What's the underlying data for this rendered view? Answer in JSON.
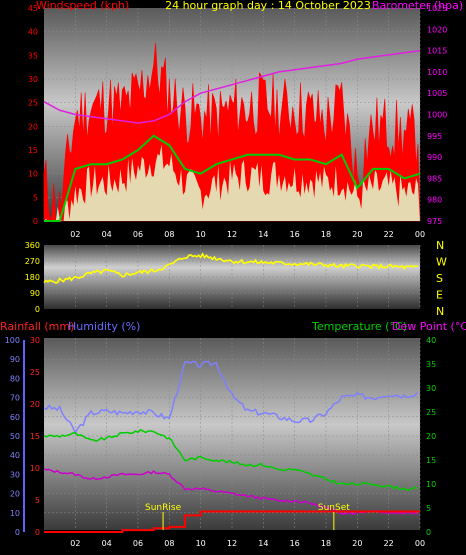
{
  "title": "24 hour graph day : 14 October 2023",
  "colors": {
    "background": "#000000",
    "wind_label": "#ff0000",
    "baro_label": "#ff00ff",
    "rain_label": "#ff2020",
    "humidity_label": "#6a6aff",
    "temp_label": "#00d000",
    "dew_label": "#ff00ff",
    "gust": "#ff0000",
    "wind_avg": "#00cc00",
    "wind_speed": "#e0ffd0",
    "barometer": "#e020e0",
    "direction": "#ffff00",
    "humidity": "#8080ff",
    "temperature": "#00cc00",
    "dewpoint": "#cc00cc",
    "rain": "#ff0000",
    "sun_marker": "#ffff00"
  },
  "chart_data": [
    {
      "type": "line",
      "title": "24 hour graph day : 14 October 2023",
      "ylabel": "Windspeed (kph)",
      "y2label": "Barometer (hpa)",
      "ylim": [
        0,
        45
      ],
      "y2lim": [
        975,
        1025
      ],
      "yticks": [
        0,
        5,
        10,
        15,
        20,
        25,
        30,
        35,
        40,
        45
      ],
      "y2ticks": [
        975,
        980,
        985,
        990,
        995,
        1000,
        1005,
        1010,
        1015,
        1020,
        1025
      ],
      "xticks": [
        "02",
        "04",
        "06",
        "08",
        "10",
        "12",
        "14",
        "16",
        "18",
        "20",
        "22",
        "00"
      ],
      "x": [
        0,
        1,
        2,
        3,
        4,
        5,
        6,
        7,
        8,
        9,
        10,
        11,
        12,
        13,
        14,
        15,
        16,
        17,
        18,
        19,
        20,
        21,
        22,
        23,
        24
      ],
      "series": [
        {
          "name": "Gust",
          "values": [
            8,
            2,
            22,
            24,
            25,
            24,
            27,
            33,
            27,
            23,
            22,
            22,
            24,
            24,
            25,
            24,
            24,
            23,
            21,
            25,
            10,
            20,
            20,
            18,
            18
          ]
        },
        {
          "name": "Wind",
          "values": [
            0,
            0,
            11,
            12,
            12,
            13,
            15,
            18,
            16,
            11,
            10,
            12,
            13,
            14,
            14,
            14,
            13,
            13,
            12,
            14,
            7,
            11,
            11,
            9,
            10
          ]
        },
        {
          "name": "Speed",
          "values": [
            0,
            0,
            6,
            8,
            8,
            9,
            11,
            13,
            12,
            8,
            6,
            8,
            9,
            10,
            9,
            10,
            9,
            9,
            8,
            9,
            5,
            7,
            7,
            6,
            6
          ]
        },
        {
          "name": "Barometer",
          "values": [
            1003,
            1001,
            1000,
            999.5,
            999,
            998.5,
            998,
            998.5,
            1000,
            1003,
            1005,
            1006,
            1007,
            1008,
            1009,
            1010,
            1010.5,
            1011,
            1011.5,
            1012,
            1013,
            1013.5,
            1014,
            1014.5,
            1015
          ]
        }
      ]
    },
    {
      "type": "line",
      "ylim": [
        0,
        360
      ],
      "yticks": [
        0,
        90,
        180,
        270,
        360
      ],
      "ytick_labels": [
        "0",
        "90",
        "180",
        "270",
        "360"
      ],
      "right_labels": [
        "N",
        "W",
        "S",
        "E",
        "N"
      ],
      "x": [
        0,
        1,
        2,
        3,
        4,
        5,
        6,
        7,
        8,
        9,
        10,
        11,
        12,
        13,
        14,
        15,
        16,
        17,
        18,
        19,
        20,
        21,
        22,
        23,
        24
      ],
      "series": [
        {
          "name": "Direction",
          "values": [
            150,
            160,
            175,
            200,
            215,
            190,
            205,
            215,
            245,
            295,
            300,
            285,
            270,
            265,
            262,
            258,
            255,
            252,
            248,
            240,
            245,
            238,
            240,
            235,
            232
          ]
        }
      ]
    },
    {
      "type": "line",
      "ylabel": "Rainfall (mm)",
      "y2label": "Humidity (%)",
      "y3label": "Temperature (°C)",
      "y4label": "Dew Point (°C)",
      "ylim_humidity": [
        0,
        100
      ],
      "ylim_rain": [
        0,
        30
      ],
      "ylim_temp": [
        0,
        40
      ],
      "humidity_ticks": [
        0,
        10,
        20,
        30,
        40,
        50,
        60,
        70,
        80,
        90,
        100
      ],
      "rain_ticks": [
        0,
        5,
        10,
        15,
        20,
        25,
        30
      ],
      "temp_ticks": [
        0,
        5,
        10,
        15,
        20,
        25,
        30,
        35,
        40
      ],
      "xticks": [
        "02",
        "04",
        "06",
        "08",
        "10",
        "12",
        "14",
        "16",
        "18",
        "20",
        "22",
        "00"
      ],
      "annotations": [
        {
          "text": "SunRise",
          "x": 7.6
        },
        {
          "text": "SunSet",
          "x": 18.5
        }
      ],
      "x": [
        0,
        1,
        2,
        3,
        4,
        5,
        6,
        7,
        8,
        9,
        10,
        11,
        12,
        13,
        14,
        15,
        16,
        17,
        18,
        19,
        20,
        21,
        22,
        23,
        24
      ],
      "series": [
        {
          "name": "Humidity",
          "values": [
            65,
            64,
            52,
            62,
            63,
            62,
            63,
            62,
            59,
            88,
            87,
            88,
            71,
            63,
            62,
            60,
            58,
            58,
            62,
            70,
            71,
            70,
            72,
            71,
            73
          ]
        },
        {
          "name": "Temperature",
          "values": [
            20,
            20,
            20.5,
            19,
            19.5,
            20.5,
            21,
            21,
            19.5,
            15,
            15.5,
            15,
            14.5,
            14,
            14,
            13,
            13,
            12,
            11,
            10,
            10,
            10,
            9.5,
            9,
            9
          ]
        },
        {
          "name": "Dew Point",
          "values": [
            13,
            12.5,
            12,
            11,
            11.5,
            12,
            12,
            12.5,
            12,
            9,
            9,
            8.5,
            8,
            7.5,
            7,
            6.5,
            6.5,
            6,
            5,
            4,
            4,
            4.5,
            4,
            4,
            4
          ]
        },
        {
          "name": "Rainfall",
          "values": [
            0,
            0,
            0,
            0,
            0,
            0.3,
            0.3,
            0.6,
            0.8,
            2.6,
            3.2,
            3.2,
            3.2,
            3.2,
            3.2,
            3.2,
            3.2,
            3.2,
            3.2,
            3.2,
            3.2,
            3.2,
            3.2,
            3.2,
            3.2
          ]
        }
      ]
    }
  ]
}
